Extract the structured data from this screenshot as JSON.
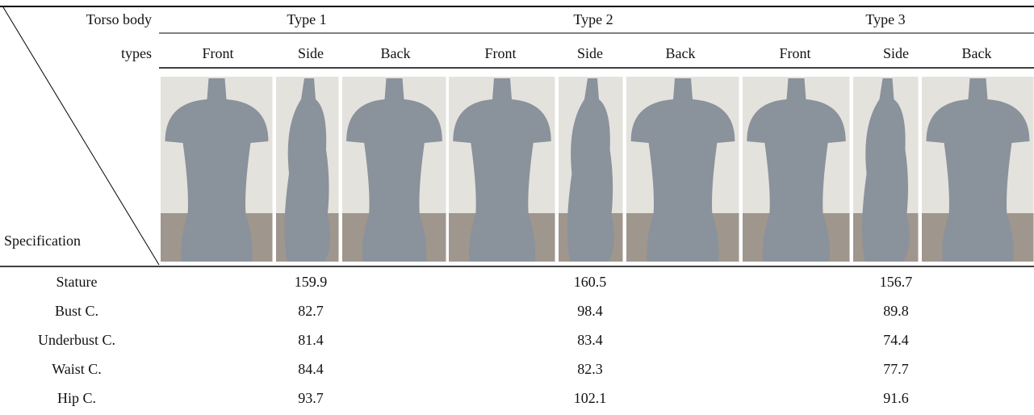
{
  "table": {
    "corner": {
      "top_line1": "Torso body",
      "top_line2": "types",
      "bottom": "Specification"
    },
    "groups": [
      "Type 1",
      "Type 2",
      "Type 3"
    ],
    "views": [
      "Front",
      "Side",
      "Back",
      "Front",
      "Side",
      "Back",
      "Front",
      "Side",
      "Back"
    ],
    "rows": [
      {
        "label": "Stature",
        "values": [
          159.9,
          160.5,
          156.7
        ]
      },
      {
        "label": "Bust C.",
        "values": [
          82.7,
          98.4,
          89.8
        ]
      },
      {
        "label": "Underbust C.",
        "values": [
          81.4,
          83.4,
          74.4
        ]
      },
      {
        "label": "Waist C.",
        "values": [
          84.4,
          82.3,
          77.7
        ]
      },
      {
        "label": "Hip C.",
        "values": [
          93.7,
          102.1,
          91.6
        ]
      }
    ]
  }
}
